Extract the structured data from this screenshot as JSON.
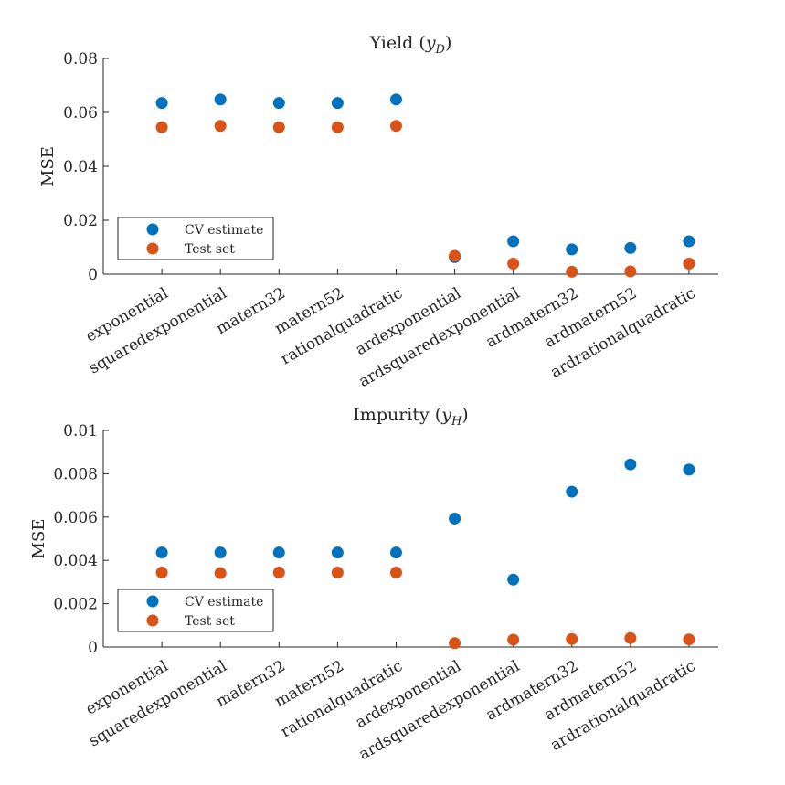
{
  "chart_data": [
    {
      "type": "scatter",
      "title": "Yield (",
      "title_var": "y",
      "title_sub": "D",
      "title_close": ")",
      "ylabel": "MSE",
      "ylim": [
        0,
        0.08
      ],
      "yticks": [
        0,
        0.02,
        0.04,
        0.06,
        0.08
      ],
      "ytick_labels": [
        "0",
        "0.02",
        "0.04",
        "0.06",
        "0.08"
      ],
      "categories": [
        "exponential",
        "squaredexponential",
        "matern32",
        "matern52",
        "rationalquadratic",
        "ardexponential",
        "ardsquaredexponential",
        "ardmatern32",
        "ardmatern52",
        "ardrationalquadratic"
      ],
      "legend_position": "lower-left",
      "series": [
        {
          "name": "CV estimate",
          "color": "#0072BD",
          "values": [
            0.0635,
            0.0648,
            0.0635,
            0.0635,
            0.0648,
            0.0063,
            0.0122,
            0.0092,
            0.0097,
            0.0122
          ]
        },
        {
          "name": "Test set",
          "color": "#D95319",
          "values": [
            0.0545,
            0.055,
            0.0545,
            0.0545,
            0.055,
            0.0068,
            0.0039,
            0.0009,
            0.001,
            0.0039
          ]
        }
      ]
    },
    {
      "type": "scatter",
      "title": "Impurity (",
      "title_var": "y",
      "title_sub": "H",
      "title_close": ")",
      "ylabel": "MSE",
      "ylim": [
        0,
        0.01
      ],
      "yticks": [
        0,
        0.002,
        0.004,
        0.006,
        0.008,
        0.01
      ],
      "ytick_labels": [
        "0",
        "0.002",
        "0.004",
        "0.006",
        "0.008",
        "0.01"
      ],
      "categories": [
        "exponential",
        "squaredexponential",
        "matern32",
        "matern52",
        "rationalquadratic",
        "ardexponential",
        "ardsquaredexponential",
        "ardmatern32",
        "ardmatern52",
        "ardrationalquadratic"
      ],
      "legend_position": "lower-left",
      "series": [
        {
          "name": "CV estimate",
          "color": "#0072BD",
          "values": [
            0.00436,
            0.00436,
            0.00436,
            0.00436,
            0.00436,
            0.00593,
            0.00311,
            0.00717,
            0.00843,
            0.00819
          ]
        },
        {
          "name": "Test set",
          "color": "#D95319",
          "values": [
            0.00344,
            0.00341,
            0.00344,
            0.00344,
            0.00344,
            0.00018,
            0.00034,
            0.00037,
            0.00041,
            0.00035
          ]
        }
      ]
    }
  ]
}
